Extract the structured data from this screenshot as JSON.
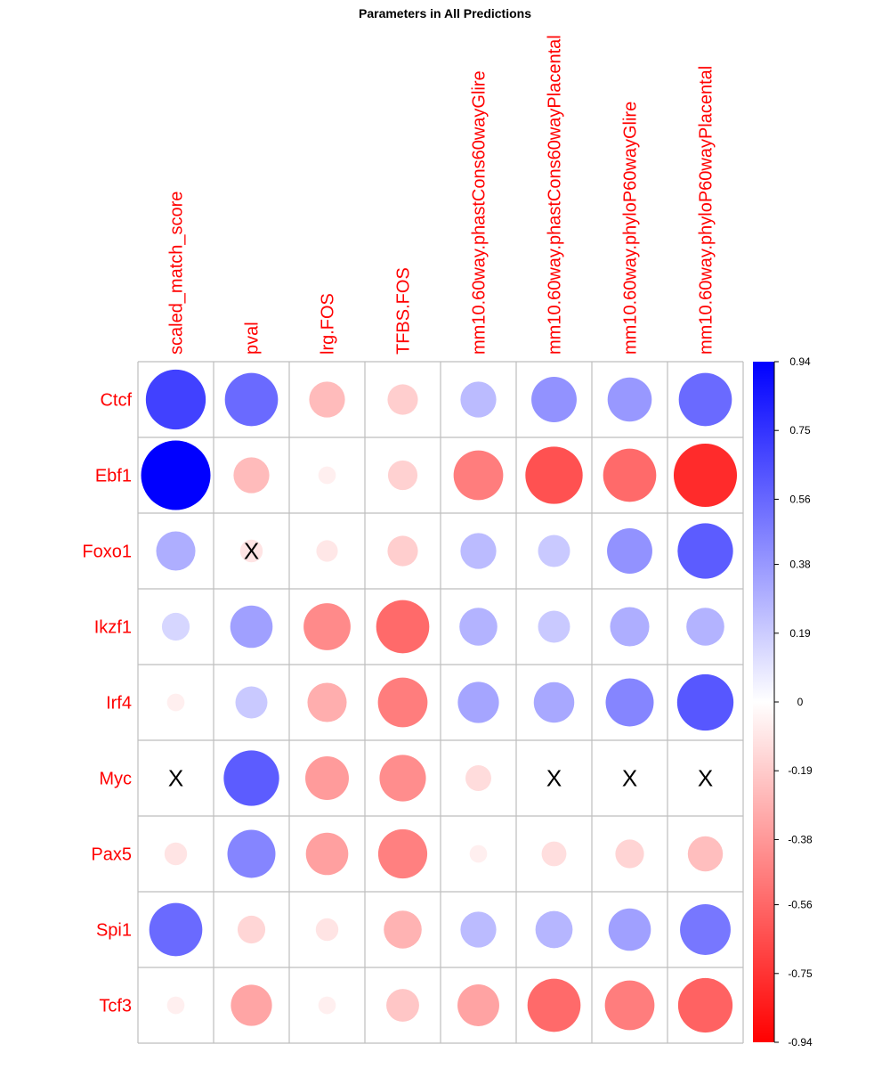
{
  "chart_data": {
    "type": "heatmap",
    "title": "Parameters in All Predictions",
    "columns": [
      "scaled_match_score",
      "pval",
      "lrg.FOS",
      "TFBS.FOS",
      "mm10.60way.phastCons60wayGlire",
      "mm10.60way.phastCons60wayPlacental",
      "mm10.60way.phyloP60wayGlire",
      "mm10.60way.phyloP60wayPlacental"
    ],
    "rows": [
      "Ctcf",
      "Ebf1",
      "Foxo1",
      "Ikzf1",
      "Irf4",
      "Myc",
      "Pax5",
      "Spi1",
      "Tcf3"
    ],
    "values": [
      [
        0.7,
        0.55,
        -0.25,
        -0.18,
        0.25,
        0.4,
        0.38,
        0.55
      ],
      [
        0.94,
        -0.25,
        -0.06,
        -0.17,
        -0.48,
        -0.64,
        -0.55,
        -0.78
      ],
      [
        0.3,
        -0.1,
        -0.09,
        -0.18,
        0.25,
        0.2,
        0.4,
        0.6
      ],
      [
        0.15,
        0.35,
        -0.43,
        -0.55,
        0.28,
        0.2,
        0.3,
        0.28
      ],
      [
        -0.06,
        0.2,
        -0.3,
        -0.48,
        0.33,
        0.32,
        0.45,
        0.62
      ],
      [
        null,
        0.6,
        -0.37,
        -0.42,
        -0.13,
        null,
        null,
        null
      ],
      [
        -0.1,
        0.45,
        -0.35,
        -0.47,
        -0.06,
        -0.12,
        -0.16,
        -0.24
      ],
      [
        0.55,
        -0.15,
        -0.1,
        -0.28,
        0.25,
        0.27,
        0.35,
        0.5
      ],
      [
        -0.06,
        -0.33,
        -0.06,
        -0.21,
        -0.34,
        -0.55,
        -0.48,
        -0.58
      ]
    ],
    "missing_marker": "X",
    "color_scale": {
      "min": -0.94,
      "max": 0.94,
      "low_color": "#ff0000",
      "mid_color": "#ffffff",
      "high_color": "#0000ff"
    },
    "colorbar_ticks": [
      "0.94",
      "0.75",
      "0.56",
      "0.38",
      "0.19",
      "0",
      "-0.19",
      "-0.38",
      "-0.56",
      "-0.75",
      "-0.94"
    ],
    "colorbar_tick_values": [
      0.94,
      0.75,
      0.56,
      0.38,
      0.19,
      0,
      -0.19,
      -0.38,
      -0.56,
      -0.75,
      -0.94
    ],
    "label_color": "#ff0000",
    "grid_color": "#bebebe",
    "legend_position": "right"
  }
}
